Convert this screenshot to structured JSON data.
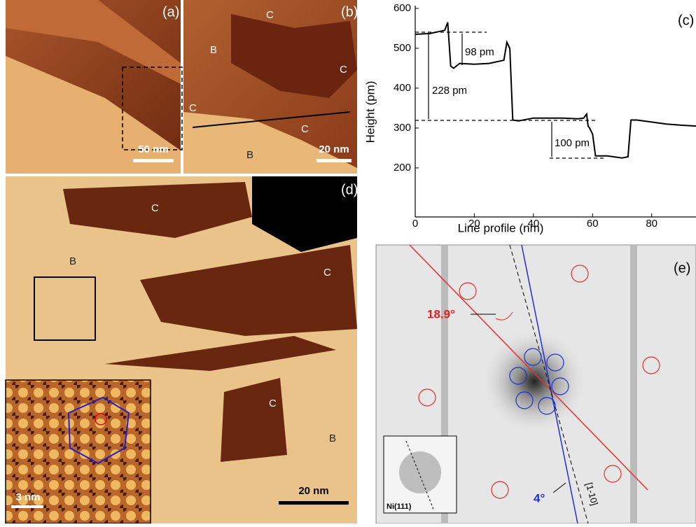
{
  "panels": {
    "a": {
      "label": "(a)",
      "scale_bar": "50 nm"
    },
    "b": {
      "label": "(b)",
      "scale_bar": "20 nm",
      "regions": [
        "C",
        "B",
        "C",
        "C",
        "C",
        "B"
      ]
    },
    "d": {
      "label": "(d)",
      "scale_bar": "20 nm",
      "inset_scale_bar": "3 nm",
      "regions": [
        "C",
        "B",
        "C",
        "C",
        "B"
      ]
    },
    "e": {
      "label": "(e)",
      "angle_red": "18.9°",
      "angle_blue": "4°",
      "direction": "[1-10]",
      "inset_label": "Ni(111)"
    }
  },
  "chart_data": {
    "type": "line",
    "label": "(c)",
    "x_label": "Line profile (nm)",
    "y_label": "Height (pm)",
    "x": [
      0,
      5,
      10,
      11,
      12,
      13,
      15,
      20,
      25,
      30,
      31,
      32,
      33,
      35,
      40,
      45,
      50,
      55,
      57,
      58,
      58.5,
      59,
      60,
      61,
      65,
      70,
      72,
      73,
      75,
      80,
      85,
      90,
      95
    ],
    "values": [
      535,
      537,
      545,
      565,
      455,
      450,
      462,
      460,
      462,
      470,
      515,
      500,
      320,
      318,
      325,
      325,
      325,
      323,
      325,
      335,
      305,
      300,
      285,
      230,
      230,
      225,
      228,
      320,
      320,
      315,
      310,
      307,
      305
    ],
    "color": "#000000",
    "xlim": [
      0,
      95
    ],
    "xticks": [
      0,
      20,
      40,
      60,
      80
    ],
    "ylim": [
      77,
      600
    ],
    "yticks": [
      200,
      300,
      400,
      500,
      600
    ],
    "annotations": [
      "98 pm",
      "228 pm",
      "100 pm"
    ]
  }
}
